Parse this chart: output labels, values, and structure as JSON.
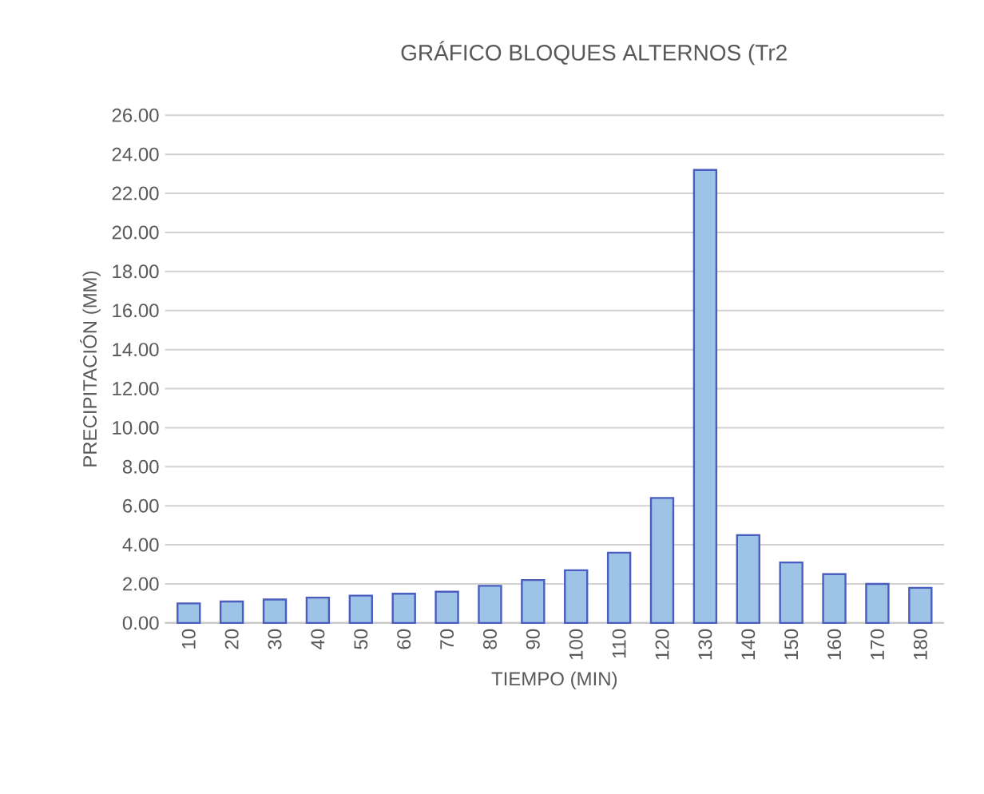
{
  "chart_data": {
    "type": "bar",
    "title": "GRÁFICO BLOQUES ALTERNOS (Tr2",
    "xlabel": "TIEMPO (MIN)",
    "ylabel": "PRECIPITACIÓN (MM)",
    "categories": [
      "10",
      "20",
      "30",
      "40",
      "50",
      "60",
      "70",
      "80",
      "90",
      "100",
      "110",
      "120",
      "130",
      "140",
      "150",
      "160",
      "170",
      "180"
    ],
    "values": [
      1.0,
      1.1,
      1.2,
      1.3,
      1.4,
      1.5,
      1.6,
      1.9,
      2.2,
      2.7,
      3.6,
      6.4,
      23.2,
      4.5,
      3.1,
      2.5,
      2.0,
      1.8
    ],
    "color": "#9dc3e6",
    "ylim": [
      0,
      26
    ],
    "yticks": [
      {
        "value": 0,
        "label": "0.00"
      },
      {
        "value": 2,
        "label": "2.00"
      },
      {
        "value": 4,
        "label": "4.00"
      },
      {
        "value": 6,
        "label": "6.00"
      },
      {
        "value": 8,
        "label": "8.00"
      },
      {
        "value": 10,
        "label": "10.00"
      },
      {
        "value": 12,
        "label": "12.00"
      },
      {
        "value": 14,
        "label": "14.00"
      },
      {
        "value": 16,
        "label": "16.00"
      },
      {
        "value": 18,
        "label": "18.00"
      },
      {
        "value": 20,
        "label": "20.00"
      },
      {
        "value": 22,
        "label": "22.00"
      },
      {
        "value": 24,
        "label": "24.00"
      },
      {
        "value": 26,
        "label": "26.00"
      }
    ],
    "grid": "y"
  }
}
